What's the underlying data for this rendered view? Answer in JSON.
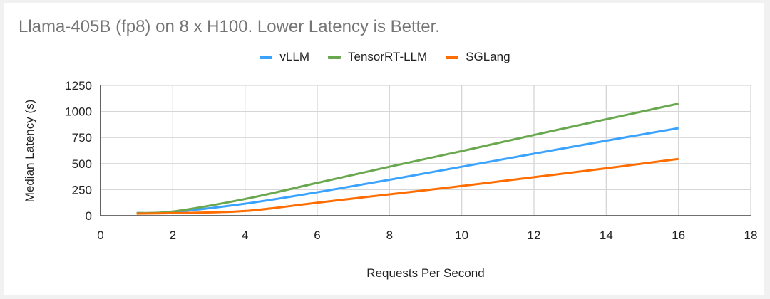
{
  "title": "Llama-405B (fp8) on 8 x H100. Lower Latency is Better.",
  "legend": [
    {
      "label": "vLLM",
      "color": "#3aa3ff"
    },
    {
      "label": "TensorRT-LLM",
      "color": "#6aa84f"
    },
    {
      "label": "SGLang",
      "color": "#ff6d01"
    }
  ],
  "chart_data": {
    "type": "line",
    "title": "Llama-405B (fp8) on 8 x H100. Lower Latency is Better.",
    "xlabel": "Requests Per Second",
    "ylabel": "Median Latency (s)",
    "xlim": [
      0,
      18
    ],
    "ylim": [
      0,
      1250
    ],
    "x_ticks": [
      "0",
      "2",
      "4",
      "6",
      "8",
      "10",
      "12",
      "14",
      "16",
      "18"
    ],
    "y_ticks": [
      "0",
      "250",
      "500",
      "750",
      "1000",
      "1250"
    ],
    "grid": true,
    "legend_position": "top",
    "x": [
      1,
      2,
      4,
      6,
      8,
      10,
      12,
      14,
      16
    ],
    "series": [
      {
        "name": "vLLM",
        "color": "#3aa3ff",
        "values": [
          25,
          35,
          115,
          225,
          345,
          470,
          595,
          720,
          840
        ]
      },
      {
        "name": "TensorRT-LLM",
        "color": "#6aa84f",
        "values": [
          25,
          40,
          160,
          315,
          470,
          620,
          775,
          925,
          1075
        ]
      },
      {
        "name": "SGLang",
        "color": "#ff6d01",
        "values": [
          20,
          25,
          45,
          125,
          205,
          285,
          370,
          455,
          545
        ]
      }
    ]
  }
}
